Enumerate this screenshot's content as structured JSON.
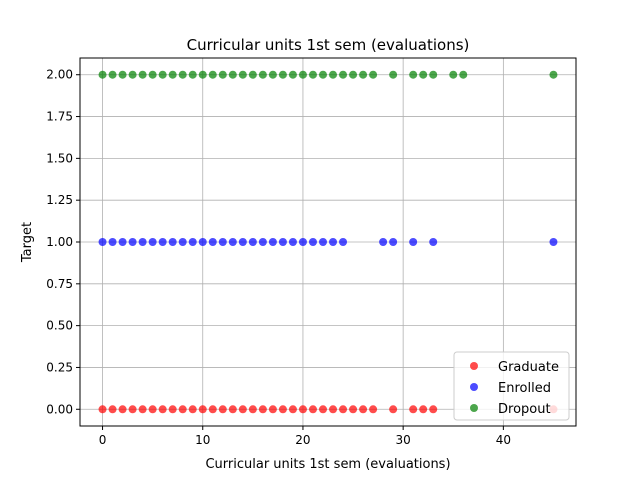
{
  "chart_data": {
    "type": "scatter",
    "title": "Curricular units 1st sem (evaluations)",
    "xlabel": "Curricular units 1st sem (evaluations)",
    "ylabel": "Target",
    "xlim": [
      -2.25,
      47.25
    ],
    "ylim": [
      -0.1,
      2.1
    ],
    "xticks": [
      0,
      10,
      20,
      30,
      40
    ],
    "yticks": [
      0.0,
      0.25,
      0.5,
      0.75,
      1.0,
      1.25,
      1.5,
      1.75,
      2.0
    ],
    "ytick_labels": [
      "0.00",
      "0.25",
      "0.50",
      "0.75",
      "1.00",
      "1.25",
      "1.50",
      "1.75",
      "2.00"
    ],
    "grid": true,
    "legend_position": "bottom-right",
    "series": [
      {
        "name": "Graduate",
        "color": "#ff0000",
        "x": [
          0,
          1,
          2,
          3,
          4,
          5,
          6,
          7,
          8,
          9,
          10,
          11,
          12,
          13,
          14,
          15,
          16,
          17,
          18,
          19,
          20,
          21,
          22,
          23,
          24,
          25,
          26,
          27,
          29,
          31,
          32,
          33,
          45
        ],
        "y": [
          0,
          0,
          0,
          0,
          0,
          0,
          0,
          0,
          0,
          0,
          0,
          0,
          0,
          0,
          0,
          0,
          0,
          0,
          0,
          0,
          0,
          0,
          0,
          0,
          0,
          0,
          0,
          0,
          0,
          0,
          0,
          0,
          0
        ]
      },
      {
        "name": "Enrolled",
        "color": "#0000ff",
        "x": [
          0,
          1,
          2,
          3,
          4,
          5,
          6,
          7,
          8,
          9,
          10,
          11,
          12,
          13,
          14,
          15,
          16,
          17,
          18,
          19,
          20,
          21,
          22,
          23,
          24,
          28,
          29,
          31,
          33,
          45
        ],
        "y": [
          1,
          1,
          1,
          1,
          1,
          1,
          1,
          1,
          1,
          1,
          1,
          1,
          1,
          1,
          1,
          1,
          1,
          1,
          1,
          1,
          1,
          1,
          1,
          1,
          1,
          1,
          1,
          1,
          1,
          1
        ]
      },
      {
        "name": "Dropout",
        "color": "#008000",
        "x": [
          0,
          1,
          2,
          3,
          4,
          5,
          6,
          7,
          8,
          9,
          10,
          11,
          12,
          13,
          14,
          15,
          16,
          17,
          18,
          19,
          20,
          21,
          22,
          23,
          24,
          25,
          26,
          27,
          29,
          31,
          32,
          33,
          35,
          36,
          45
        ],
        "y": [
          2,
          2,
          2,
          2,
          2,
          2,
          2,
          2,
          2,
          2,
          2,
          2,
          2,
          2,
          2,
          2,
          2,
          2,
          2,
          2,
          2,
          2,
          2,
          2,
          2,
          2,
          2,
          2,
          2,
          2,
          2,
          2,
          2,
          2,
          2
        ]
      }
    ]
  }
}
